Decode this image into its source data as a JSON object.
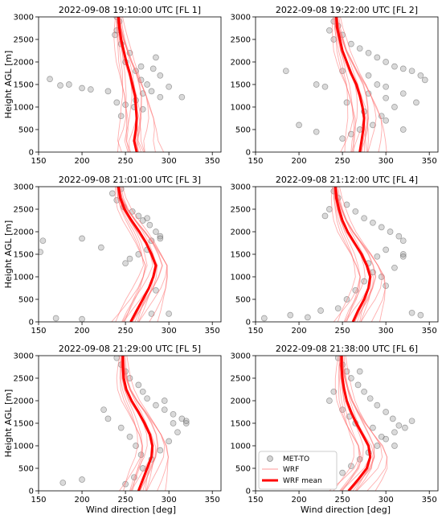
{
  "figure": {
    "xlabel": "Wind direction [deg]",
    "ylabel": "Height AGL [m]",
    "legend": {
      "placement": "lower-left of FL 6 panel",
      "entries": [
        {
          "label": "MET-TO",
          "kind": "scatter",
          "color": "#808080"
        },
        {
          "label": "WRF",
          "kind": "thin-line",
          "color": "#ff8080"
        },
        {
          "label": "WRF mean",
          "kind": "thick-line",
          "color": "#ff0000"
        }
      ]
    }
  },
  "chart_data": [
    {
      "type": "line",
      "title": "2022-09-08 19:10:00 UTC [FL 1]",
      "xlim": [
        150,
        360
      ],
      "ylim": [
        0,
        3000
      ],
      "xticks": [
        150,
        200,
        250,
        300,
        350
      ],
      "yticks": [
        0,
        500,
        1000,
        1500,
        2000,
        2500,
        3000
      ],
      "series": [
        {
          "name": "WRF mean",
          "heights": [
            0,
            250,
            500,
            750,
            1000,
            1250,
            1500,
            1750,
            2000,
            2250,
            2500,
            2750,
            3000
          ],
          "values": [
            263,
            260,
            262,
            263,
            262,
            261,
            258,
            255,
            251,
            248,
            245,
            243,
            242
          ]
        }
      ],
      "scatter": {
        "name": "MET-TO",
        "points": [
          [
            163,
            1620
          ],
          [
            175,
            1480
          ],
          [
            185,
            1500
          ],
          [
            200,
            1420
          ],
          [
            210,
            1390
          ],
          [
            230,
            1350
          ],
          [
            240,
            1100
          ],
          [
            250,
            1050
          ],
          [
            260,
            1000
          ],
          [
            262,
            1150
          ],
          [
            270,
            1300
          ],
          [
            280,
            1350
          ],
          [
            290,
            1220
          ],
          [
            315,
            1220
          ],
          [
            268,
            1600
          ],
          [
            275,
            1500
          ],
          [
            282,
            1850
          ],
          [
            290,
            1700
          ],
          [
            285,
            2100
          ],
          [
            250,
            2000
          ],
          [
            255,
            2200
          ],
          [
            245,
            2400
          ],
          [
            240,
            2700
          ],
          [
            243,
            2900
          ],
          [
            238,
            2600
          ],
          [
            262,
            1800
          ],
          [
            270,
            950
          ],
          [
            245,
            800
          ],
          [
            240,
            3000
          ],
          [
            268,
            1900
          ],
          [
            300,
            1450
          ]
        ]
      }
    },
    {
      "type": "line",
      "title": "2022-09-08 19:22:00 UTC [FL 2]",
      "xlim": [
        150,
        360
      ],
      "ylim": [
        0,
        3000
      ],
      "xticks": [
        150,
        200,
        250,
        300,
        350
      ],
      "yticks": [
        0,
        500,
        1000,
        1500,
        2000,
        2500,
        3000
      ],
      "series": [
        {
          "name": "WRF mean",
          "heights": [
            0,
            250,
            500,
            750,
            1000,
            1250,
            1500,
            1750,
            2000,
            2250,
            2500,
            2750,
            3000
          ],
          "values": [
            270,
            272,
            274,
            275,
            273,
            270,
            266,
            260,
            255,
            250,
            247,
            244,
            243
          ]
        }
      ],
      "scatter": {
        "name": "MET-TO",
        "points": [
          [
            240,
            2900
          ],
          [
            245,
            2800
          ],
          [
            250,
            2600
          ],
          [
            260,
            2400
          ],
          [
            270,
            2300
          ],
          [
            280,
            2200
          ],
          [
            290,
            2100
          ],
          [
            300,
            2000
          ],
          [
            310,
            1900
          ],
          [
            320,
            1850
          ],
          [
            330,
            1800
          ],
          [
            340,
            1700
          ],
          [
            345,
            1600
          ],
          [
            290,
            1500
          ],
          [
            280,
            1300
          ],
          [
            300,
            1200
          ],
          [
            310,
            1000
          ],
          [
            295,
            800
          ],
          [
            285,
            600
          ],
          [
            270,
            500
          ],
          [
            260,
            400
          ],
          [
            250,
            300
          ],
          [
            220,
            450
          ],
          [
            200,
            600
          ],
          [
            185,
            1800
          ],
          [
            230,
            1450
          ],
          [
            220,
            1500
          ],
          [
            255,
            1100
          ],
          [
            275,
            900
          ],
          [
            300,
            700
          ],
          [
            320,
            500
          ],
          [
            335,
            1100
          ],
          [
            250,
            1800
          ],
          [
            240,
            2500
          ],
          [
            235,
            2700
          ],
          [
            300,
            1450
          ],
          [
            320,
            1300
          ],
          [
            280,
            1700
          ]
        ]
      }
    },
    {
      "type": "line",
      "title": "2022-09-08 21:01:00 UTC [FL 3]",
      "xlim": [
        150,
        360
      ],
      "ylim": [
        0,
        3000
      ],
      "xticks": [
        150,
        200,
        250,
        300,
        350
      ],
      "yticks": [
        0,
        500,
        1000,
        1500,
        2000,
        2500,
        3000
      ],
      "series": [
        {
          "name": "WRF mean",
          "heights": [
            0,
            250,
            500,
            750,
            1000,
            1250,
            1500,
            1750,
            2000,
            2250,
            2500,
            2750,
            3000
          ],
          "values": [
            256,
            263,
            270,
            277,
            282,
            285,
            280,
            274,
            266,
            257,
            249,
            244,
            242
          ]
        }
      ],
      "scatter": {
        "name": "MET-TO",
        "points": [
          [
            235,
            2850
          ],
          [
            240,
            2700
          ],
          [
            248,
            2550
          ],
          [
            258,
            2450
          ],
          [
            265,
            2350
          ],
          [
            270,
            2250
          ],
          [
            278,
            2150
          ],
          [
            285,
            2000
          ],
          [
            290,
            1900
          ],
          [
            280,
            1800
          ],
          [
            275,
            1600
          ],
          [
            265,
            1500
          ],
          [
            255,
            1400
          ],
          [
            250,
            1300
          ],
          [
            200,
            1850
          ],
          [
            222,
            1650
          ],
          [
            155,
            1800
          ],
          [
            152,
            1550
          ],
          [
            170,
            80
          ],
          [
            200,
            60
          ],
          [
            280,
            180
          ],
          [
            300,
            180
          ],
          [
            290,
            1850
          ],
          [
            275,
            2300
          ],
          [
            245,
            2950
          ],
          [
            285,
            700
          ]
        ]
      }
    },
    {
      "type": "line",
      "title": "2022-09-08 21:12:00 UTC [FL 4]",
      "xlim": [
        150,
        360
      ],
      "ylim": [
        0,
        3000
      ],
      "xticks": [
        150,
        200,
        250,
        300,
        350
      ],
      "yticks": [
        0,
        500,
        1000,
        1500,
        2000,
        2500,
        3000
      ],
      "series": [
        {
          "name": "WRF mean",
          "heights": [
            0,
            250,
            500,
            750,
            1000,
            1250,
            1500,
            1750,
            2000,
            2250,
            2500,
            2750,
            3000
          ],
          "values": [
            262,
            268,
            275,
            280,
            282,
            278,
            272,
            264,
            256,
            250,
            246,
            243,
            242
          ]
        }
      ],
      "scatter": {
        "name": "MET-TO",
        "points": [
          [
            240,
            2900
          ],
          [
            245,
            2750
          ],
          [
            255,
            2600
          ],
          [
            265,
            2450
          ],
          [
            275,
            2300
          ],
          [
            285,
            2200
          ],
          [
            295,
            2100
          ],
          [
            305,
            2000
          ],
          [
            315,
            1900
          ],
          [
            320,
            1800
          ],
          [
            300,
            1600
          ],
          [
            290,
            1450
          ],
          [
            280,
            1300
          ],
          [
            285,
            1100
          ],
          [
            275,
            900
          ],
          [
            265,
            700
          ],
          [
            255,
            500
          ],
          [
            245,
            300
          ],
          [
            225,
            250
          ],
          [
            210,
            100
          ],
          [
            190,
            150
          ],
          [
            160,
            80
          ],
          [
            330,
            200
          ],
          [
            340,
            150
          ],
          [
            320,
            1500
          ],
          [
            310,
            1200
          ],
          [
            295,
            1000
          ],
          [
            300,
            800
          ],
          [
            230,
            2350
          ],
          [
            235,
            2500
          ],
          [
            320,
            1450
          ]
        ]
      }
    },
    {
      "type": "line",
      "title": "2022-09-08 21:29:00 UTC [FL 5]",
      "xlim": [
        150,
        360
      ],
      "ylim": [
        0,
        3000
      ],
      "xticks": [
        150,
        200,
        250,
        300,
        350
      ],
      "yticks": [
        0,
        500,
        1000,
        1500,
        2000,
        2500,
        3000
      ],
      "series": [
        {
          "name": "WRF mean",
          "heights": [
            0,
            250,
            500,
            750,
            1000,
            1250,
            1500,
            1750,
            2000,
            2250,
            2500,
            2750,
            3000
          ],
          "values": [
            265,
            270,
            275,
            280,
            281,
            278,
            272,
            265,
            257,
            251,
            248,
            247,
            247
          ]
        }
      ],
      "scatter": {
        "name": "MET-TO",
        "points": [
          [
            240,
            2950
          ],
          [
            245,
            2800
          ],
          [
            250,
            2650
          ],
          [
            255,
            2500
          ],
          [
            265,
            2350
          ],
          [
            270,
            2200
          ],
          [
            275,
            2050
          ],
          [
            285,
            1900
          ],
          [
            295,
            1800
          ],
          [
            305,
            1700
          ],
          [
            315,
            1600
          ],
          [
            320,
            1500
          ],
          [
            310,
            1300
          ],
          [
            300,
            1100
          ],
          [
            290,
            900
          ],
          [
            280,
            700
          ],
          [
            270,
            500
          ],
          [
            260,
            300
          ],
          [
            250,
            150
          ],
          [
            225,
            1800
          ],
          [
            230,
            1600
          ],
          [
            245,
            1400
          ],
          [
            255,
            1200
          ],
          [
            262,
            1000
          ],
          [
            268,
            800
          ],
          [
            295,
            2000
          ],
          [
            305,
            1500
          ],
          [
            178,
            180
          ],
          [
            200,
            250
          ],
          [
            320,
            1550
          ]
        ]
      }
    },
    {
      "type": "line",
      "title": "2022-09-08 21:38:00 UTC [FL 6]",
      "xlim": [
        150,
        360
      ],
      "ylim": [
        0,
        3000
      ],
      "xticks": [
        150,
        200,
        250,
        300,
        350
      ],
      "yticks": [
        0,
        500,
        1000,
        1500,
        2000,
        2500,
        3000
      ],
      "series": [
        {
          "name": "WRF mean",
          "heights": [
            0,
            250,
            500,
            750,
            1000,
            1250,
            1500,
            1750,
            2000,
            2250,
            2500,
            2750,
            3000
          ],
          "values": [
            257,
            268,
            278,
            282,
            280,
            273,
            266,
            260,
            255,
            252,
            250,
            249,
            249
          ]
        }
      ],
      "scatter": {
        "name": "MET-TO",
        "points": [
          [
            245,
            2950
          ],
          [
            250,
            2800
          ],
          [
            255,
            2650
          ],
          [
            260,
            2500
          ],
          [
            268,
            2350
          ],
          [
            275,
            2200
          ],
          [
            282,
            2050
          ],
          [
            290,
            1900
          ],
          [
            300,
            1750
          ],
          [
            308,
            1600
          ],
          [
            315,
            1450
          ],
          [
            310,
            1300
          ],
          [
            300,
            1150
          ],
          [
            290,
            1000
          ],
          [
            280,
            850
          ],
          [
            270,
            700
          ],
          [
            260,
            550
          ],
          [
            250,
            400
          ],
          [
            240,
            2200
          ],
          [
            235,
            2000
          ],
          [
            250,
            1800
          ],
          [
            258,
            1650
          ],
          [
            265,
            1500
          ],
          [
            285,
            1400
          ],
          [
            295,
            1200
          ],
          [
            310,
            1000
          ],
          [
            322,
            1400
          ],
          [
            330,
            1550
          ],
          [
            270,
            2650
          ]
        ]
      }
    }
  ]
}
